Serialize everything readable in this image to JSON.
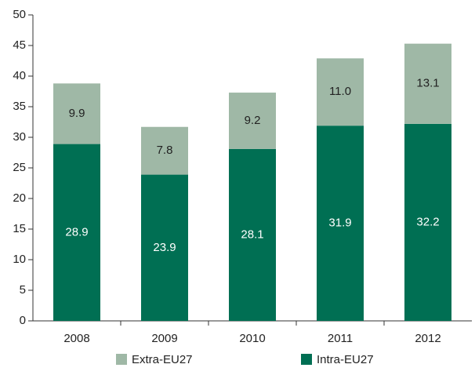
{
  "chart_data": {
    "type": "stacked_bar",
    "categories": [
      "2008",
      "2009",
      "2010",
      "2011",
      "2012"
    ],
    "series": [
      {
        "name": "Intra-EU27",
        "color": "#006f53",
        "values": [
          28.9,
          23.9,
          28.1,
          31.9,
          32.2
        ],
        "value_labels": [
          "28.9",
          "23.9",
          "28.1",
          "31.9",
          "32.2"
        ]
      },
      {
        "name": "Extra-EU27",
        "color": "#9fb8a6",
        "values": [
          9.9,
          7.8,
          9.2,
          11,
          13.1
        ],
        "value_labels": [
          "9.9",
          "7.8",
          "9.2",
          "11.0",
          "13.1"
        ]
      }
    ],
    "ylim": [
      0,
      50
    ],
    "yticks": [
      0,
      5,
      10,
      15,
      20,
      25,
      30,
      35,
      40,
      45,
      50
    ],
    "legend": "bottom"
  }
}
